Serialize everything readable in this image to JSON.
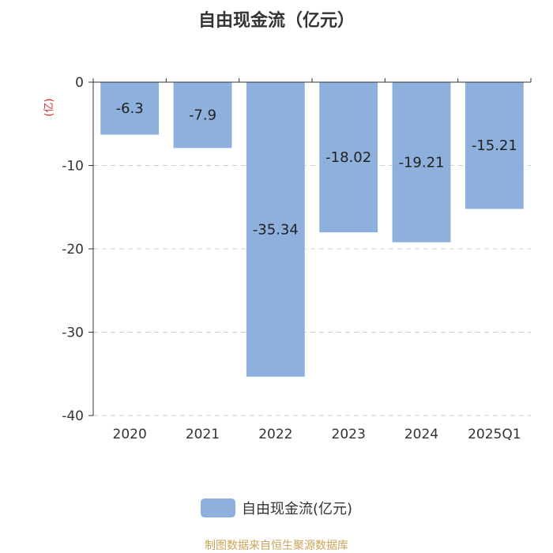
{
  "chart_data": {
    "type": "bar",
    "title": "自由现金流（亿元）",
    "ylabel": "(亿)",
    "categories": [
      "2020",
      "2021",
      "2022",
      "2023",
      "2024",
      "2025Q1"
    ],
    "series": [
      {
        "name": "自由现金流(亿元)",
        "values": [
          -6.3,
          -7.9,
          -35.34,
          -18.02,
          -19.21,
          -15.21
        ]
      }
    ],
    "data_labels": [
      "-6.3",
      "-7.9",
      "-35.34",
      "-18.02",
      "-19.21",
      "-15.21"
    ],
    "ylim": [
      -40,
      0
    ],
    "yticks": [
      0,
      -10,
      -20,
      -30,
      -40
    ],
    "grid": true,
    "legend": "bottom-center",
    "bar_color": "#8eb0dd"
  },
  "source": "制图数据来自恒生聚源数据库"
}
